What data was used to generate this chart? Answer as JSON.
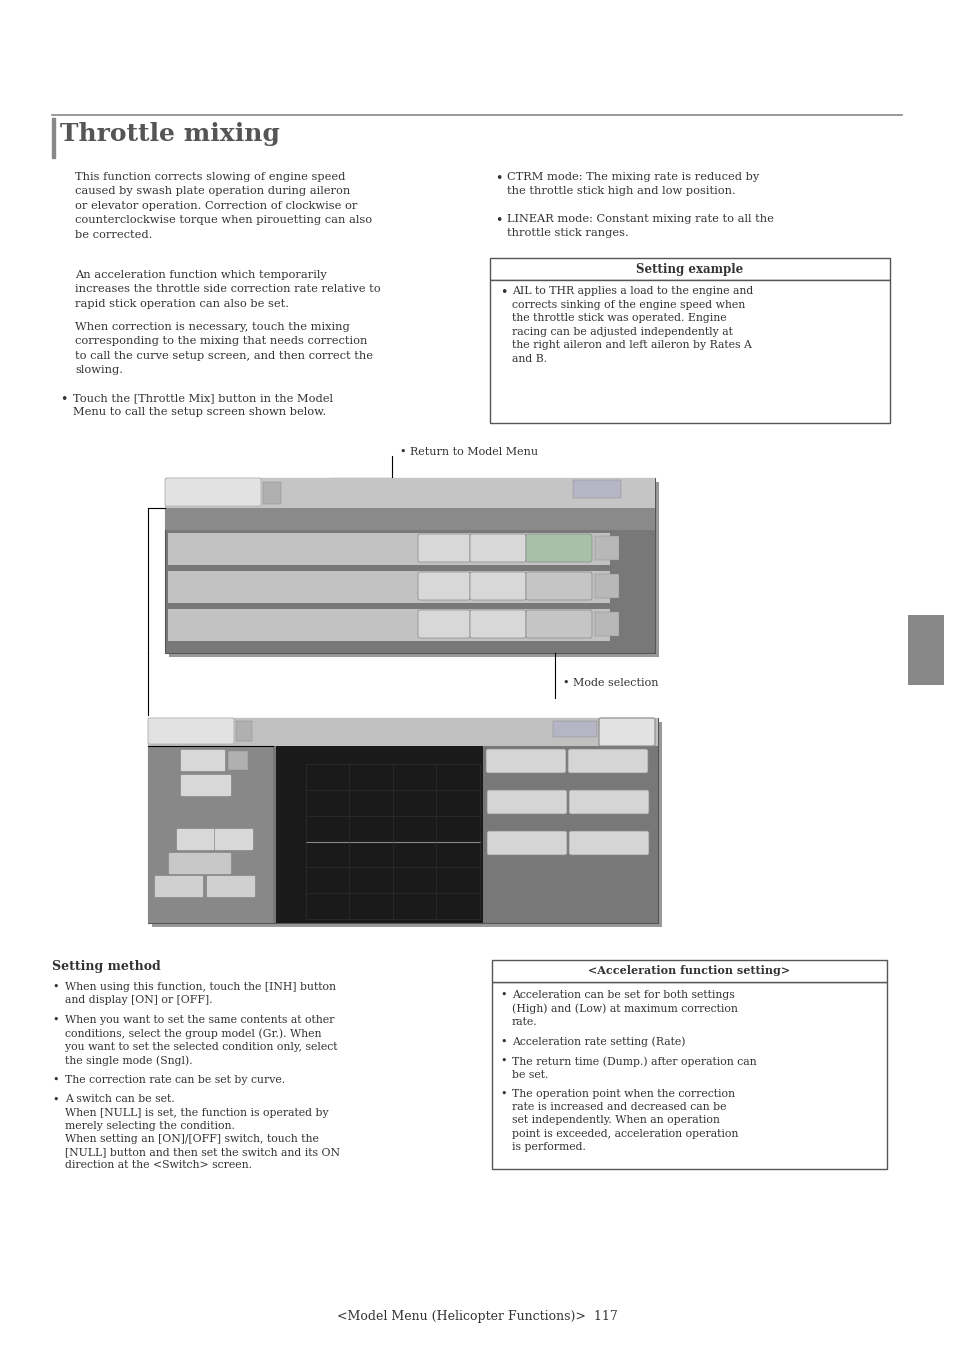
{
  "page_bg": "#ffffff",
  "title": "Throttle mixing",
  "title_color": "#555555",
  "body_color": "#333333",
  "header_line_color": "#888888",
  "footer_text": "<Model Menu (Helicopter Functions)>  117",
  "setting_example_title": "Setting example",
  "setting_example_text": "AIL to THR applies a load to the engine and\ncorrects sinking of the engine speed when\nthe throttle stick was operated. Engine\nracing can be adjusted independently at\nthe right aileron and left aileron by Rates A\nand B.",
  "annotation_return": "Return to Model Menu",
  "annotation_mode": "Mode selection",
  "setting_method_title": "Setting method",
  "setting_method_bullets": [
    "When using this function, touch the [INH] button\nand display [ON] or [OFF].",
    "When you want to set the same contents at other\nconditions, select the group model (Gr.). When\nyou want to set the selected condition only, select\nthe single mode (Sngl).",
    "The correction rate can be set by curve.",
    "A switch can be set.\nWhen [NULL] is set, the function is operated by\nmerely selecting the condition.\nWhen setting an [ON]/[OFF] switch, touch the\n[NULL] button and then set the switch and its ON\ndirection at the <Switch> screen."
  ],
  "accel_title": "<Acceleration function setting>",
  "accel_bullets": [
    "Acceleration can be set for both settings\n(High) and (Low) at maximum correction\nrate.",
    "Acceleration rate setting (Rate)",
    "The return time (Dump.) after operation can\nbe set.",
    "The operation point when the correction\nrate is increased and decreased can be\nset independently. When an operation\npoint is exceeded, acceleration operation\nis performed."
  ],
  "sidebar_color": "#888888"
}
